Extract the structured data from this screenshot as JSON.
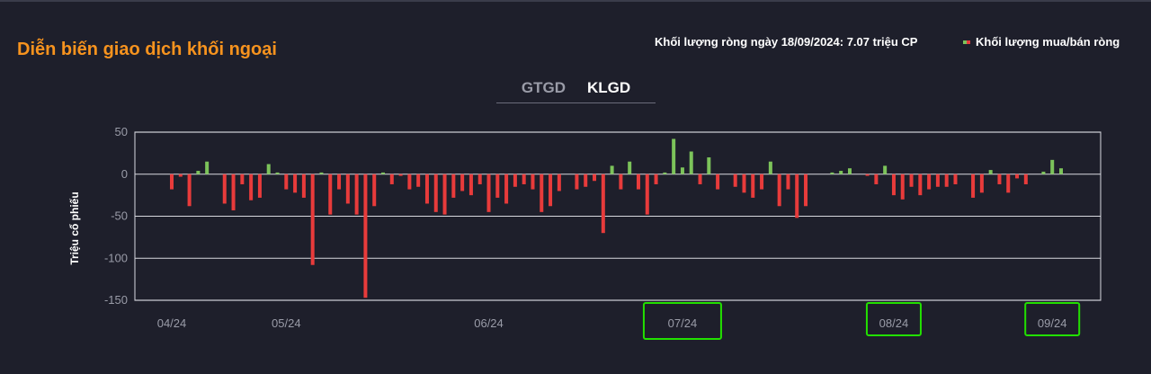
{
  "header": {
    "title": "Diễn biến giao dịch khối ngoại",
    "summary": "Khối lượng ròng ngày 18/09/2024: 7.07 triệu CP",
    "legend_label": "Khối lượng mua/bán ròng"
  },
  "tabs": [
    {
      "label": "GTGD",
      "active": false
    },
    {
      "label": "KLGD",
      "active": true
    }
  ],
  "colors": {
    "positive": "#7cc35a",
    "negative": "#e83b3b",
    "highlight_box": "#22e000"
  },
  "chart_data": {
    "type": "bar",
    "ylabel": "Triệu cổ phiếu",
    "ylim": [
      -150,
      50
    ],
    "yticks": [
      50,
      0,
      -50,
      -100,
      -150
    ],
    "grid": true,
    "legend_position": "top-right",
    "x_labels": [
      {
        "label": "04/24",
        "index": 0,
        "highlighted": false
      },
      {
        "label": "05/24",
        "index": 13,
        "highlighted": false
      },
      {
        "label": "06/24",
        "index": 36,
        "highlighted": false
      },
      {
        "label": "07/24",
        "index": 58,
        "highlighted": true
      },
      {
        "label": "08/24",
        "index": 82,
        "highlighted": true
      },
      {
        "label": "09/24",
        "index": 100,
        "highlighted": true
      }
    ],
    "values": [
      -18,
      -3,
      -38,
      4,
      15,
      0,
      -35,
      -43,
      -12,
      -31,
      -28,
      12,
      2,
      -18,
      -22,
      -28,
      -108,
      2,
      -48,
      -18,
      -35,
      -48,
      -147,
      -38,
      2,
      -12,
      -2,
      -18,
      -15,
      -35,
      -45,
      -48,
      -28,
      -20,
      -25,
      -12,
      -45,
      -28,
      -35,
      -15,
      -12,
      -18,
      -45,
      -38,
      -20,
      0,
      -18,
      -15,
      -8,
      -70,
      10,
      -18,
      15,
      -18,
      -48,
      -12,
      2,
      42,
      8,
      27,
      -12,
      20,
      -18,
      0,
      -15,
      -22,
      -28,
      -18,
      15,
      -38,
      -18,
      -52,
      -38,
      0,
      0,
      2,
      4,
      7,
      0,
      -2,
      -12,
      10,
      -25,
      -30,
      -15,
      -25,
      -18,
      -15,
      -15,
      -12,
      0,
      -28,
      -22,
      5,
      -12,
      -22,
      -5,
      -12,
      0,
      3,
      17,
      7
    ]
  }
}
